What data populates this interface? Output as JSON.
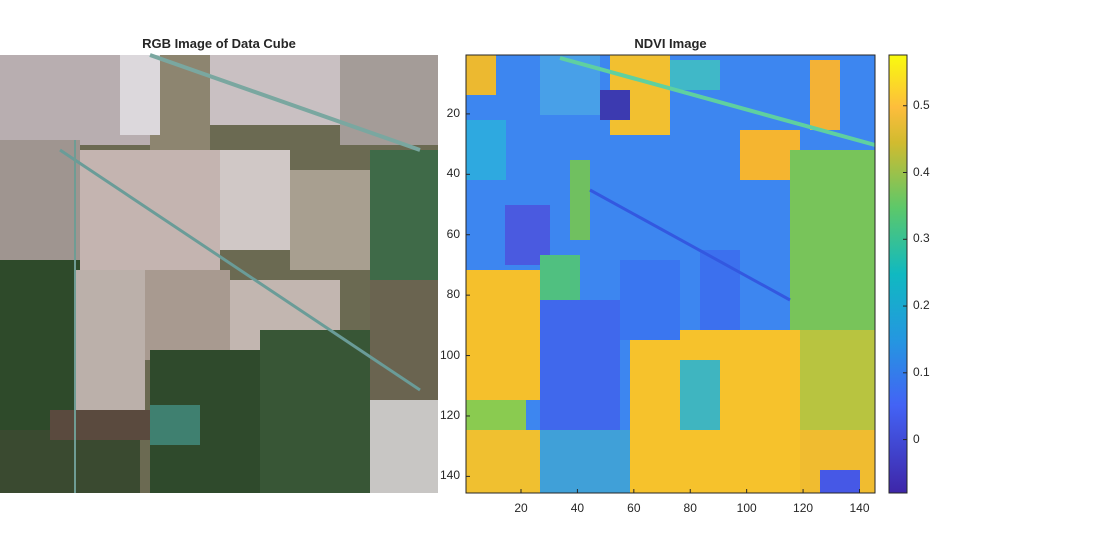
{
  "chart_data": [
    {
      "type": "image",
      "title": "RGB Image of Data Cube",
      "axes_visible": false,
      "image_size": [
        145,
        145
      ]
    },
    {
      "type": "heatmap",
      "title": "NDVI Image",
      "image_size": [
        145,
        145
      ],
      "xlim": [
        0.5,
        145.5
      ],
      "ylim": [
        0.5,
        145.5
      ],
      "y_reversed": true,
      "x_ticks": [
        "20",
        "40",
        "60",
        "80",
        "100",
        "120",
        "140"
      ],
      "y_ticks": [
        "20",
        "40",
        "60",
        "80",
        "100",
        "120",
        "140"
      ],
      "colormap": "parula",
      "colorbar": {
        "limits": [
          -0.08,
          0.576
        ],
        "ticks": [
          "0",
          "0.1",
          "0.2",
          "0.3",
          "0.4",
          "0.5"
        ]
      }
    }
  ]
}
